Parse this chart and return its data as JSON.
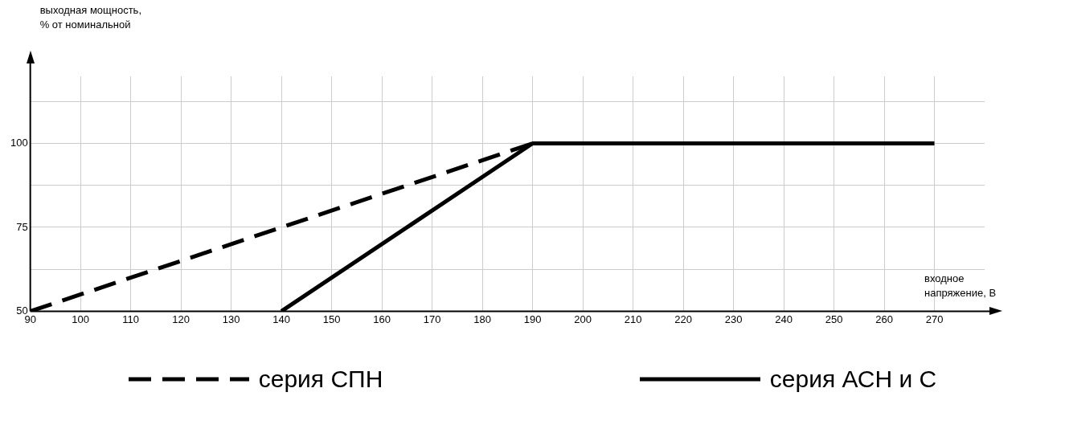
{
  "chart_data": {
    "type": "line",
    "xlabel": "входное напряжение, В",
    "ylabel": "выходная мощность, % от номинальной",
    "xlim": [
      90,
      280
    ],
    "xticks": [
      90,
      100,
      110,
      120,
      130,
      140,
      150,
      160,
      170,
      180,
      190,
      200,
      210,
      220,
      230,
      240,
      250,
      260,
      270
    ],
    "ylim": [
      50,
      120
    ],
    "yticks": [
      50,
      {
        "value": 62.5,
        "label": null
      },
      75,
      {
        "value": 87.5,
        "label": null
      },
      100,
      {
        "value": 112.5,
        "label": null
      }
    ],
    "grid": true,
    "legend": "bottom",
    "marker": "none",
    "series": [
      {
        "name": "серия СПН",
        "color": "#000000",
        "line_style": "dashed",
        "x": [
          90,
          190
        ],
        "values": [
          50,
          100
        ]
      },
      {
        "name": "серия АСН и С",
        "color": "#000000",
        "line_style": "solid",
        "x": [
          140,
          190,
          270
        ],
        "values": [
          50,
          100,
          100
        ]
      }
    ]
  }
}
